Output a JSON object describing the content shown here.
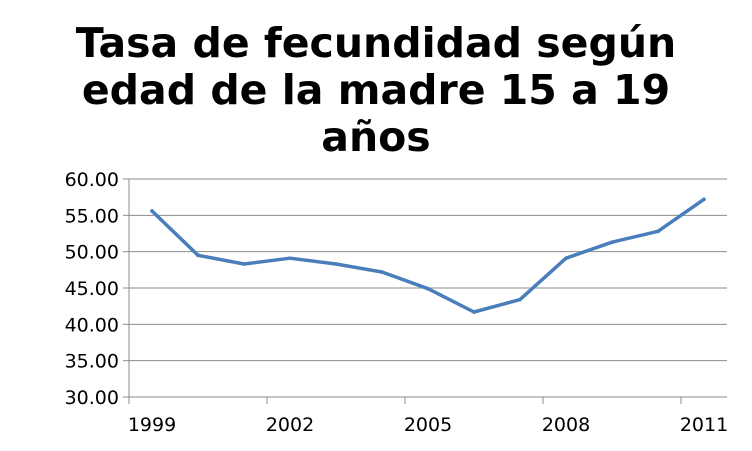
{
  "chart_data": {
    "type": "line",
    "title": "Tasa de fecundidad según edad de la madre 15 a 19 años",
    "title_lines": [
      "Tasa de fecundidad según",
      "edad de la madre 15 a 19",
      "años"
    ],
    "x": [
      1999,
      2000,
      2001,
      2002,
      2003,
      2004,
      2005,
      2006,
      2007,
      2008,
      2009,
      2010,
      2011
    ],
    "x_tick_labels": [
      "1999",
      "2002",
      "2005",
      "2008",
      "2011"
    ],
    "series": [
      {
        "values": [
          55.6,
          49.5,
          48.3,
          49.1,
          48.3,
          47.2,
          44.9,
          41.7,
          43.4,
          49.1,
          51.3,
          52.8,
          57.2
        ],
        "color": "#4a7ebb"
      }
    ],
    "y_tick_labels": [
      "30.00",
      "35.00",
      "40.00",
      "45.00",
      "50.00",
      "55.00",
      "60.00"
    ],
    "ylim": [
      30,
      60
    ],
    "xlabel": "",
    "ylabel": "",
    "grid": "horizontal",
    "legend": "none"
  }
}
